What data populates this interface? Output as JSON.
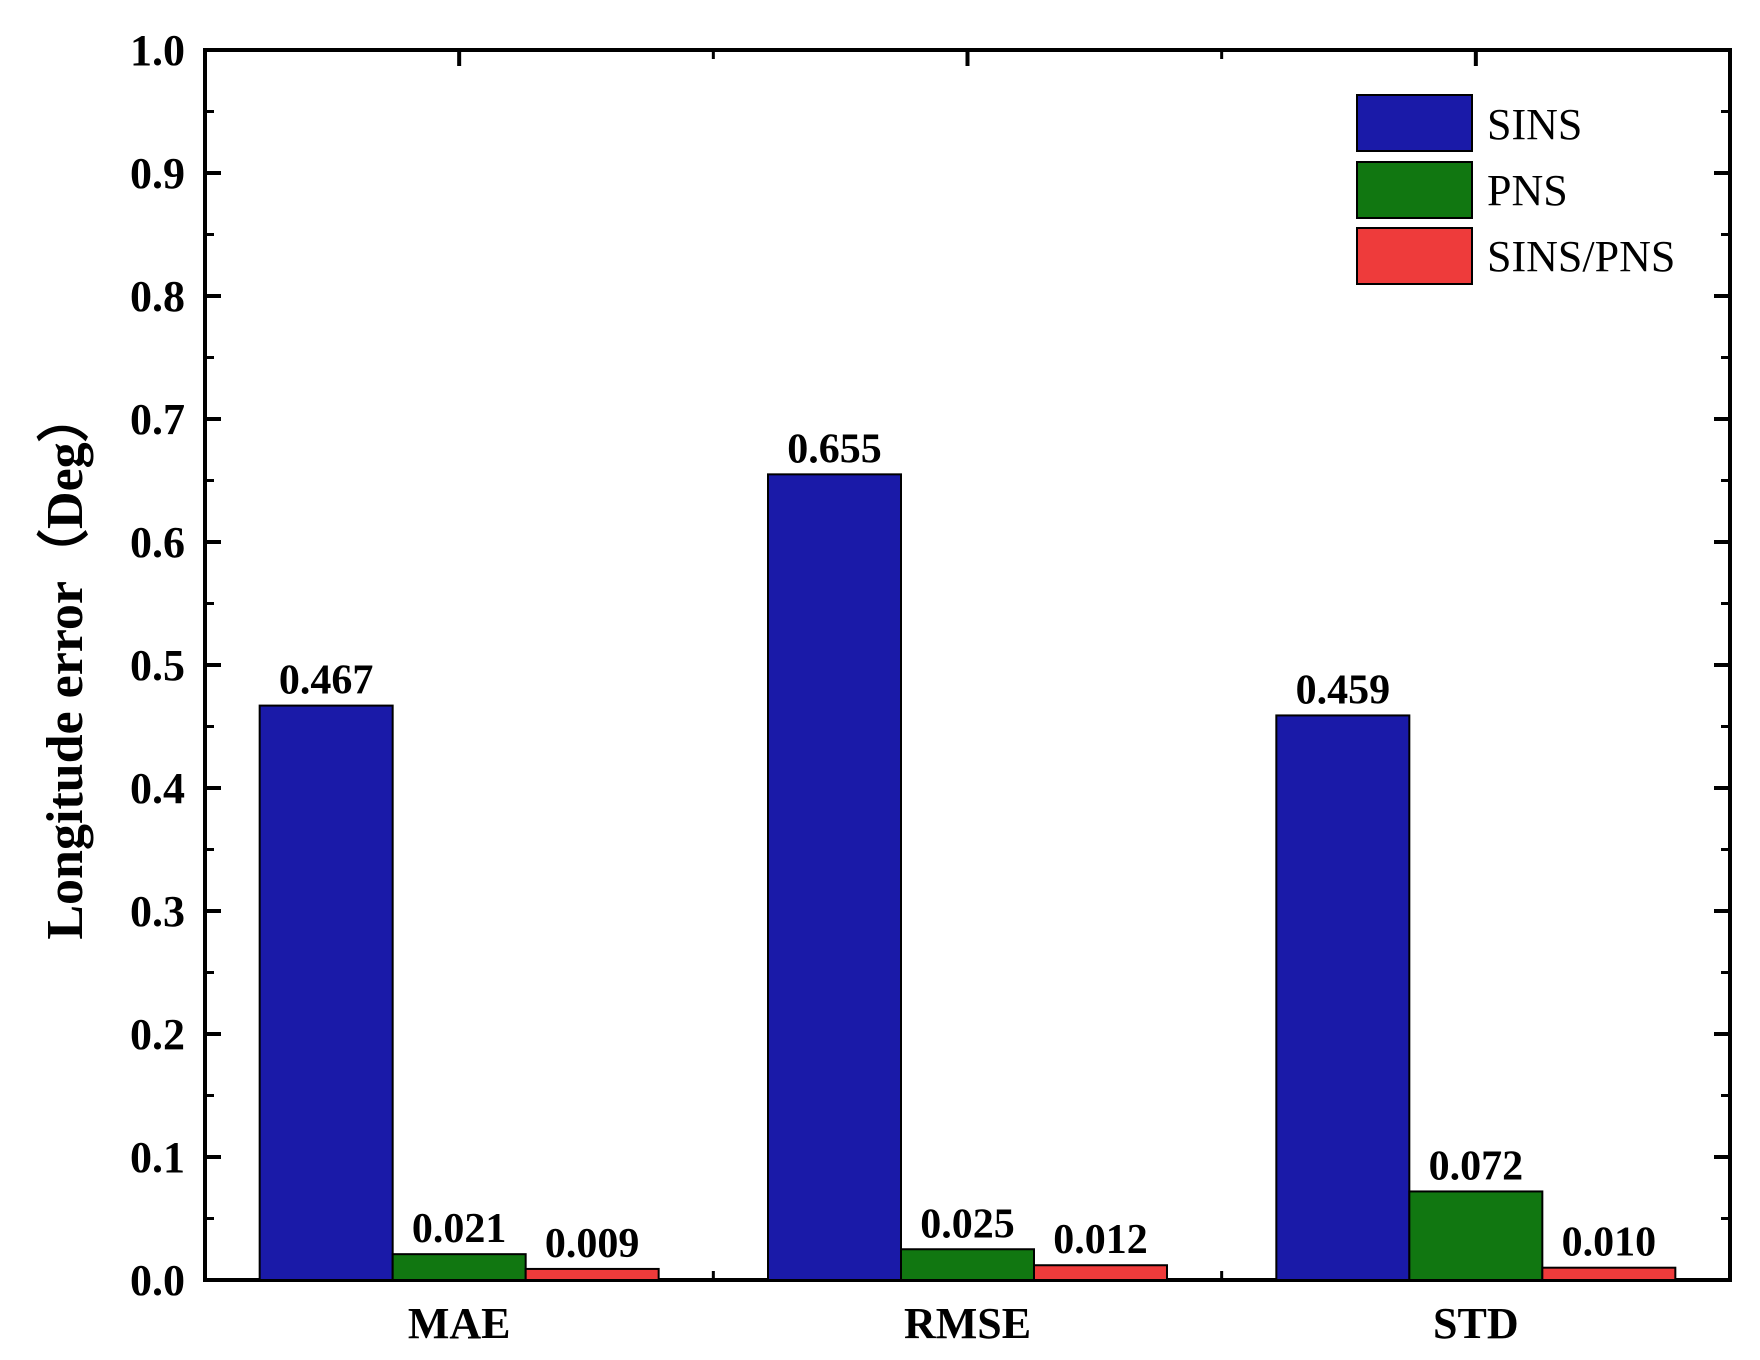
{
  "chart_data": {
    "type": "bar",
    "title": "",
    "xlabel": "",
    "ylabel": "Longitude error（Deg）",
    "categories": [
      "MAE",
      "RMSE",
      "STD"
    ],
    "series": [
      {
        "name": "SINS",
        "color": "#1a1aa8",
        "values": [
          0.467,
          0.655,
          0.459
        ],
        "labels": [
          "0.467",
          "0.655",
          "0.459"
        ]
      },
      {
        "name": "PNS",
        "color": "#117711",
        "values": [
          0.021,
          0.025,
          0.072
        ],
        "labels": [
          "0.021",
          "0.025",
          "0.072"
        ]
      },
      {
        "name": "SINS/PNS",
        "color": "#ee3b3b",
        "values": [
          0.009,
          0.012,
          0.01
        ],
        "labels": [
          "0.009",
          "0.012",
          "0.010"
        ]
      }
    ],
    "ylim": [
      0,
      1.0
    ],
    "yticks": [
      "0.0",
      "0.1",
      "0.2",
      "0.3",
      "0.4",
      "0.5",
      "0.6",
      "0.7",
      "0.8",
      "0.9",
      "1.0"
    ],
    "grid": false,
    "legend_position": "top-right"
  }
}
